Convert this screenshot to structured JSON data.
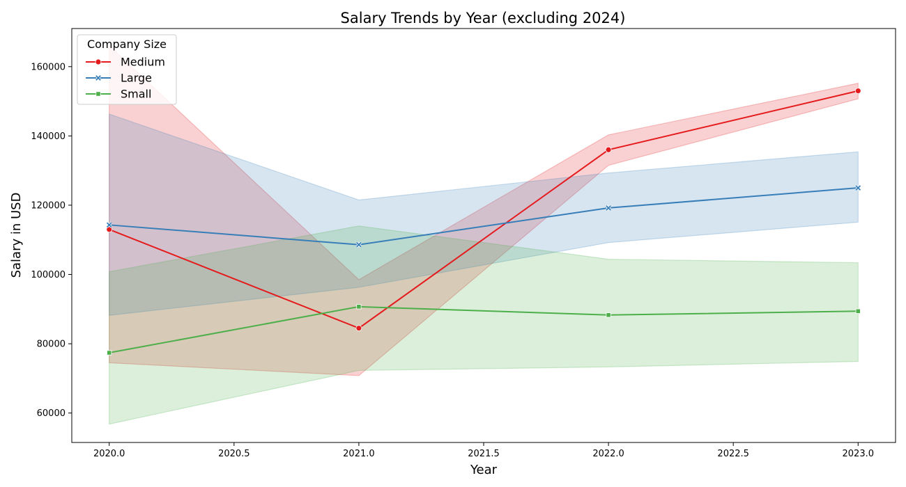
{
  "chart_data": {
    "type": "line",
    "title": "Salary Trends by Year (excluding 2024)",
    "xlabel": "Year",
    "ylabel": "Salary in USD",
    "x": [
      2020,
      2021,
      2022,
      2023
    ],
    "xlim": [
      2019.85,
      2023.15
    ],
    "ylim": [
      51500,
      171000
    ],
    "xticks": [
      2020.0,
      2020.5,
      2021.0,
      2021.5,
      2022.0,
      2022.5,
      2023.0
    ],
    "xtick_labels": [
      "2020.0",
      "2020.5",
      "2021.0",
      "2021.5",
      "2022.0",
      "2022.5",
      "2023.0"
    ],
    "yticks": [
      60000,
      80000,
      100000,
      120000,
      140000,
      160000
    ],
    "ytick_labels": [
      "60000",
      "80000",
      "100000",
      "120000",
      "140000",
      "160000"
    ],
    "grid": false,
    "legend": {
      "title": "Company Size",
      "placement": "top-left"
    },
    "series": [
      {
        "name": "Medium",
        "color": "#e41a1c",
        "marker": "circle",
        "values": [
          113000,
          84500,
          136000,
          153000
        ],
        "ci_lower": [
          74500,
          70800,
          131500,
          150700
        ],
        "ci_upper": [
          166000,
          98500,
          140300,
          155200
        ]
      },
      {
        "name": "Large",
        "color": "#377eb8",
        "marker": "x",
        "values": [
          114300,
          108600,
          119200,
          125000
        ],
        "ci_lower": [
          88200,
          96300,
          109200,
          115100
        ],
        "ci_upper": [
          146300,
          121500,
          129300,
          135400
        ]
      },
      {
        "name": "Small",
        "color": "#4daf4a",
        "marker": "square",
        "values": [
          77400,
          90700,
          88300,
          89400
        ],
        "ci_lower": [
          56800,
          72300,
          73300,
          74900
        ],
        "ci_upper": [
          100800,
          114000,
          104400,
          103400
        ]
      }
    ]
  }
}
